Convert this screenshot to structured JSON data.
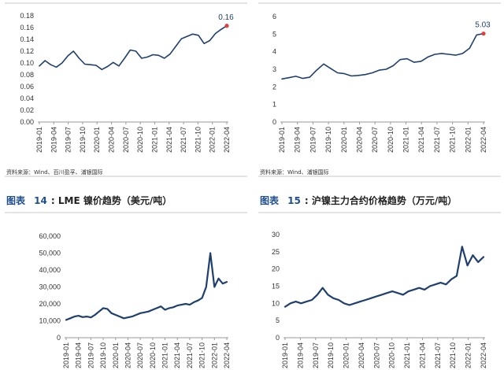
{
  "source_left": "资料来源：Wind、百川盈孚、浦银国际",
  "source_right": "资料来源：Wind、浦银国际",
  "caption_left": {
    "prefix": "图表",
    "num": "14",
    "title": "LME 镍价趋势（美元/吨）"
  },
  "caption_right": {
    "prefix": "图表",
    "num": "15",
    "title": "沪镍主力合约价格趋势（万元/吨）"
  },
  "colors": {
    "line": "#1f3f6e",
    "marker": "#e0403a",
    "axis": "#999999",
    "caption_blue": "#1f4e8c"
  },
  "chart_data": [
    {
      "type": "line",
      "ylim": [
        0,
        0.18
      ],
      "yticks": [
        "0.00",
        "0.02",
        "0.04",
        "0.06",
        "0.08",
        "0.10",
        "0.12",
        "0.14",
        "0.16",
        "0.18"
      ],
      "xticks": [
        "2019-01",
        "2019-04",
        "2019-07",
        "2019-10",
        "2020-01",
        "2020-04",
        "2020-07",
        "2020-10",
        "2021-01",
        "2021-04",
        "2021-07",
        "2021-10",
        "2022-01",
        "2022-04"
      ],
      "end_label": "0.16",
      "series": [
        {
          "values": [
            0.095,
            0.104,
            0.097,
            0.093,
            0.1,
            0.112,
            0.12,
            0.108,
            0.098,
            0.097,
            0.096,
            0.089,
            0.094,
            0.101,
            0.095,
            0.108,
            0.122,
            0.12,
            0.108,
            0.11,
            0.114,
            0.113,
            0.108,
            0.115,
            0.128,
            0.141,
            0.145,
            0.149,
            0.147,
            0.133,
            0.138,
            0.15,
            0.157,
            0.163
          ]
        }
      ]
    },
    {
      "type": "line",
      "ylim": [
        0,
        6
      ],
      "yticks": [
        "0",
        "1",
        "2",
        "3",
        "4",
        "5",
        "6"
      ],
      "xticks": [
        "2019-01",
        "2019-04",
        "2019-07",
        "2019-10",
        "2020-01",
        "2020-04",
        "2020-07",
        "2020-10",
        "2021-01",
        "2021-04",
        "2021-07",
        "2021-10",
        "2022-01",
        "2022-04"
      ],
      "end_label": "5.03",
      "series": [
        {
          "values": [
            2.45,
            2.52,
            2.6,
            2.48,
            2.55,
            2.95,
            3.3,
            3.05,
            2.8,
            2.75,
            2.62,
            2.65,
            2.7,
            2.8,
            2.95,
            3.0,
            3.2,
            3.55,
            3.6,
            3.4,
            3.45,
            3.7,
            3.85,
            3.9,
            3.85,
            3.8,
            3.9,
            4.2,
            4.95,
            5.03
          ]
        }
      ]
    },
    {
      "type": "line",
      "ylim": [
        0,
        60000
      ],
      "yticks": [
        "0",
        "10,000",
        "20,000",
        "30,000",
        "40,000",
        "50,000",
        "60,000"
      ],
      "xticks": [
        "2019-01",
        "2019-04",
        "2019-07",
        "2019-10",
        "2020-01",
        "2020-04",
        "2020-07",
        "2020-10",
        "2021-01",
        "2021-04",
        "2021-07",
        "2021-10",
        "2022-01",
        "2022-04"
      ],
      "series": [
        {
          "values": [
            10500,
            11500,
            12500,
            13000,
            12200,
            12500,
            12000,
            13500,
            15500,
            17500,
            17000,
            14500,
            13500,
            12500,
            11500,
            12000,
            12500,
            13500,
            14500,
            15000,
            15500,
            16500,
            17500,
            18500,
            16500,
            17500,
            18000,
            19000,
            19500,
            20000,
            19500,
            21000,
            22000,
            23500,
            30000,
            50000,
            30000,
            35000,
            32000,
            33000
          ]
        }
      ]
    },
    {
      "type": "line",
      "ylim": [
        0,
        30
      ],
      "yticks": [
        "0",
        "5",
        "10",
        "15",
        "20",
        "25",
        "30"
      ],
      "xticks": [
        "2019-01",
        "2019-04",
        "2019-07",
        "2019-10",
        "2020-01",
        "2020-04",
        "2020-07",
        "2020-10",
        "2021-01",
        "2021-04",
        "2021-07",
        "2021-10",
        "2022-01",
        "2022-04"
      ],
      "series": [
        {
          "values": [
            9.0,
            10.0,
            10.5,
            10.0,
            10.5,
            11.0,
            12.5,
            14.5,
            12.5,
            11.5,
            11.0,
            10.0,
            9.5,
            10.0,
            10.5,
            11.0,
            11.5,
            12.0,
            12.5,
            13.0,
            13.5,
            13.0,
            12.5,
            13.5,
            14.0,
            14.5,
            14.0,
            15.0,
            15.5,
            16.0,
            15.5,
            17.0,
            18.0,
            26.5,
            21.0,
            24.0,
            22.0,
            23.5
          ]
        }
      ]
    }
  ]
}
